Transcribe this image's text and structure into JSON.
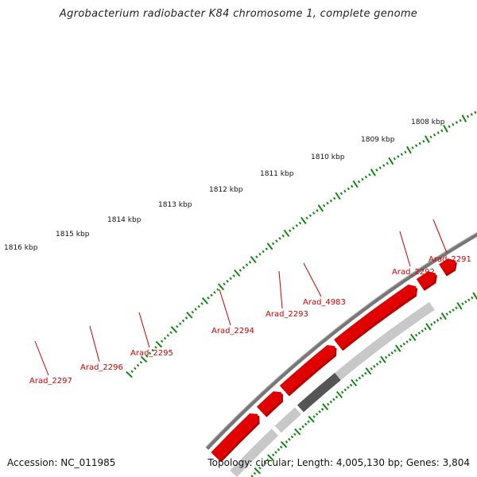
{
  "title": "Agrobacterium radiobacter K84 chromosome 1, complete genome",
  "footer": {
    "accession": "Accession: NC_011985",
    "summary": "Topology: circular; Length: 4,005,130 bp; Genes: 3,804"
  },
  "colors": {
    "gene": "#e00000",
    "gene_dark": "#b00000",
    "backbone": "#777777",
    "ruler": "#118811",
    "rna_light": "#c8c8c8",
    "rna_dark": "#555555",
    "label": "#cc0000"
  },
  "ruler_ticks": [
    {
      "label": "1816 kbp"
    },
    {
      "label": "1815 kbp"
    },
    {
      "label": "1814 kbp"
    },
    {
      "label": "1813 kbp"
    },
    {
      "label": "1812 kbp"
    },
    {
      "label": "1811 kbp"
    },
    {
      "label": "1810 kbp"
    },
    {
      "label": "1809 kbp"
    },
    {
      "label": "1808 kbp"
    }
  ],
  "gene_labels": [
    {
      "label": "Arad_2297"
    },
    {
      "label": "Arad_2296"
    },
    {
      "label": "Arad_2295"
    },
    {
      "label": "Arad_2294"
    },
    {
      "label": "Arad_2293"
    },
    {
      "label": "Arad_4983"
    },
    {
      "label": "Arad_2292"
    },
    {
      "label": "Arad_2291"
    }
  ]
}
